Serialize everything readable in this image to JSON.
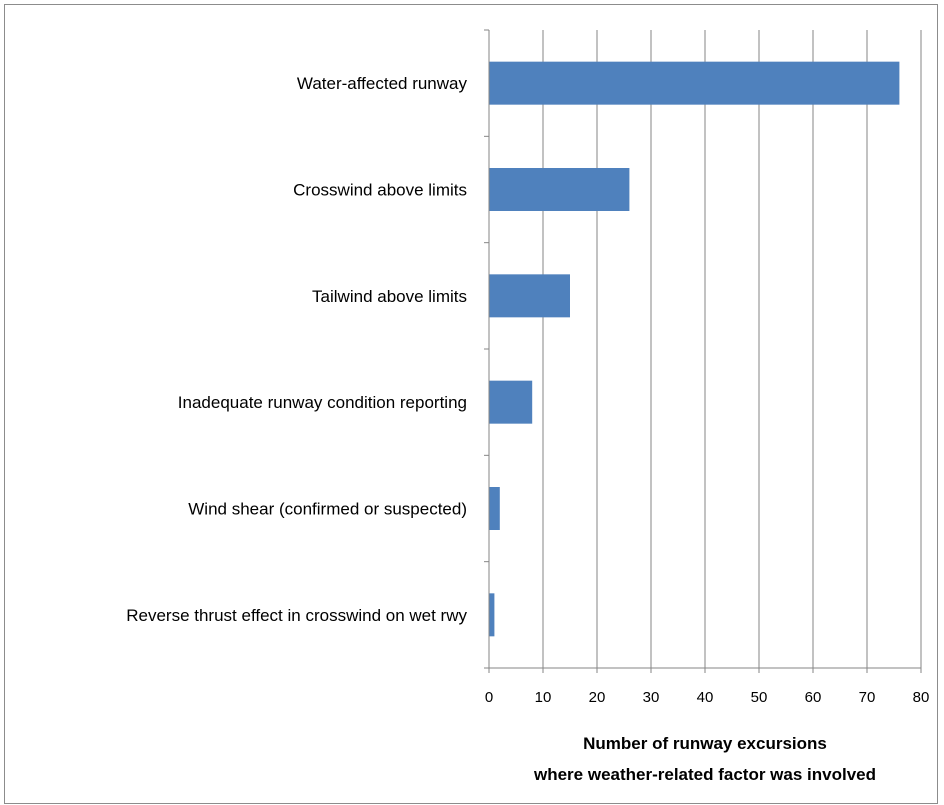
{
  "chart_data": {
    "type": "bar",
    "orientation": "horizontal",
    "categories": [
      "Water-affected runway",
      "Crosswind above limits",
      "Tailwind above limits",
      "Inadequate runway condition reporting",
      "Wind shear (confirmed or suspected)",
      "Reverse thrust effect in crosswind on wet rwy"
    ],
    "values": [
      76,
      26,
      15,
      8,
      2,
      1
    ],
    "xlabel_lines": [
      "Number of runway excursions",
      "where  weather-related factor was involved"
    ],
    "ylabel": "",
    "title": "",
    "xlim": [
      0,
      80
    ],
    "xticks": [
      "0",
      "10",
      "20",
      "30",
      "40",
      "50",
      "60",
      "70",
      "80"
    ],
    "grid": "vertical",
    "legend": "none",
    "bar_color": "#4F81BD",
    "grid_color": "#868686",
    "axis_color": "#868686"
  }
}
